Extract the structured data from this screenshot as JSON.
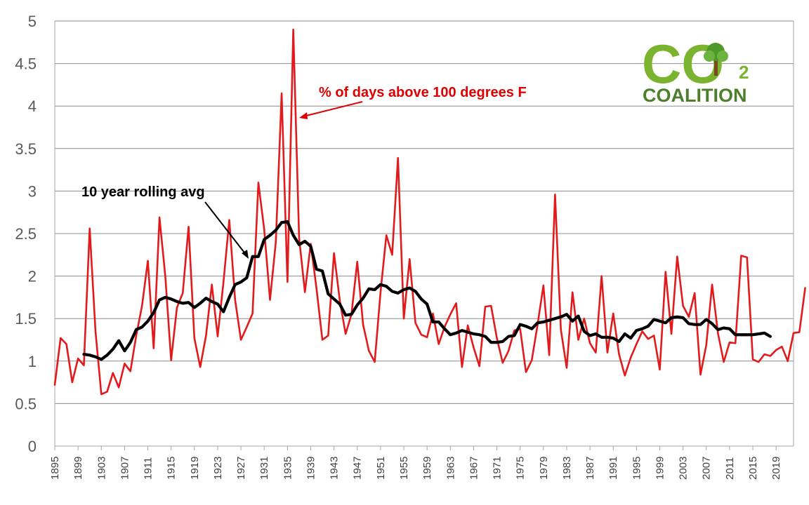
{
  "chart_data": {
    "type": "line",
    "title": "",
    "xlabel": "",
    "ylabel": "",
    "ylim": [
      0,
      5
    ],
    "yticks": [
      "0",
      "0.5",
      "1",
      "1.5",
      "2",
      "2.5",
      "3",
      "3.5",
      "4",
      "4.5",
      "5"
    ],
    "xticks": [
      "1895",
      "1899",
      "1903",
      "1907",
      "1911",
      "1915",
      "1919",
      "1923",
      "1927",
      "1931",
      "1935",
      "1939",
      "1943",
      "1947",
      "1951",
      "1955",
      "1959",
      "1963",
      "1967",
      "1971",
      "1975",
      "1979",
      "1983",
      "1987",
      "1991",
      "1995",
      "1999",
      "2003",
      "2007",
      "2011",
      "2015",
      "2019"
    ],
    "grid": "horizontal",
    "annotations": {
      "series_a_label": "% of days above 100 degrees F",
      "series_b_label": "10 year rolling avg"
    },
    "series": [
      {
        "name": "% of days above 100 degrees F",
        "color": "#e31a1c",
        "x_start": 1895,
        "values": [
          0.72,
          1.27,
          1.2,
          0.75,
          1.03,
          0.95,
          2.56,
          1.35,
          0.61,
          0.64,
          0.86,
          0.69,
          0.97,
          0.88,
          1.3,
          1.65,
          2.18,
          1.15,
          2.69,
          2.0,
          1.01,
          1.63,
          1.8,
          2.58,
          1.27,
          0.93,
          1.3,
          1.9,
          1.29,
          1.93,
          2.66,
          1.72,
          1.25,
          1.4,
          1.56,
          3.1,
          2.55,
          1.72,
          2.4,
          4.15,
          1.93,
          4.9,
          2.45,
          1.81,
          2.38,
          1.85,
          1.25,
          1.3,
          2.27,
          1.71,
          1.32,
          1.55,
          2.17,
          1.43,
          1.12,
          0.99,
          1.81,
          2.48,
          2.25,
          3.39,
          1.5,
          2.2,
          1.45,
          1.31,
          1.28,
          1.56,
          1.2,
          1.4,
          1.55,
          1.68,
          0.93,
          1.42,
          1.16,
          0.94,
          1.64,
          1.65,
          1.27,
          0.98,
          1.12,
          1.36,
          1.38,
          0.87,
          1.01,
          1.43,
          1.89,
          1.07,
          2.96,
          1.37,
          0.92,
          1.81,
          1.25,
          1.5,
          1.21,
          1.1,
          2.0,
          1.1,
          1.56,
          1.08,
          0.83,
          1.04,
          1.2,
          1.35,
          1.26,
          1.3,
          0.9,
          2.05,
          1.32,
          2.23,
          1.65,
          1.52,
          1.8,
          0.84,
          1.19,
          1.9,
          1.33,
          0.99,
          1.22,
          1.21,
          2.24,
          2.22,
          1.02,
          0.99,
          1.08,
          1.06,
          1.13,
          1.17,
          1.0,
          1.33,
          1.34,
          1.86
        ]
      },
      {
        "name": "10 year rolling avg",
        "color": "#000000",
        "x_start": 1900,
        "values": [
          1.08,
          1.07,
          1.05,
          1.02,
          1.07,
          1.14,
          1.24,
          1.12,
          1.22,
          1.37,
          1.4,
          1.47,
          1.57,
          1.72,
          1.75,
          1.73,
          1.7,
          1.68,
          1.69,
          1.63,
          1.68,
          1.74,
          1.7,
          1.67,
          1.58,
          1.75,
          1.9,
          1.93,
          1.98,
          2.23,
          2.23,
          2.43,
          2.48,
          2.54,
          2.63,
          2.64,
          2.48,
          2.37,
          2.41,
          2.35,
          2.08,
          2.06,
          1.79,
          1.73,
          1.67,
          1.54,
          1.55,
          1.66,
          1.74,
          1.85,
          1.84,
          1.9,
          1.88,
          1.82,
          1.8,
          1.84,
          1.86,
          1.82,
          1.73,
          1.67,
          1.46,
          1.46,
          1.38,
          1.31,
          1.33,
          1.36,
          1.34,
          1.32,
          1.31,
          1.29,
          1.22,
          1.22,
          1.23,
          1.29,
          1.3,
          1.43,
          1.41,
          1.38,
          1.45,
          1.46,
          1.48,
          1.5,
          1.52,
          1.55,
          1.47,
          1.53,
          1.35,
          1.3,
          1.32,
          1.28,
          1.28,
          1.27,
          1.23,
          1.32,
          1.27,
          1.36,
          1.38,
          1.41,
          1.49,
          1.47,
          1.45,
          1.51,
          1.52,
          1.51,
          1.44,
          1.43,
          1.43,
          1.49,
          1.44,
          1.37,
          1.39,
          1.38,
          1.31,
          1.31,
          1.31,
          1.31,
          1.32,
          1.33,
          1.29
        ]
      }
    ]
  },
  "logo": {
    "co_text": "CO",
    "subscript": "2",
    "name": "COALITION",
    "tree_icon": "tree-icon"
  }
}
